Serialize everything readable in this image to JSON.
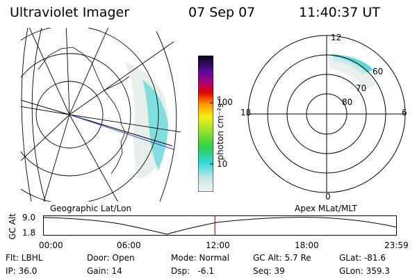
{
  "header": {
    "title": "Ultraviolet Imager",
    "date": "07 Sep 07",
    "time": "11:40:37 UT"
  },
  "colorbar": {
    "unit_label": "photon cm⁻²s⁻¹",
    "ticks": [
      "100",
      "10"
    ]
  },
  "polar_plot": {
    "mlt_labels": {
      "top": "12",
      "left": "18",
      "right": "6",
      "bottom": "0"
    },
    "lat_labels": [
      "60",
      "70",
      "80"
    ]
  },
  "map_labels": {
    "left": "Geographic Lat/Lon",
    "right": "Apex MLat/MLT"
  },
  "alt_plot": {
    "axis_label": "GC Alt",
    "y_ticks": [
      "9.0",
      "1.8"
    ],
    "x_ticks": [
      "00:00",
      "06:00",
      "12:00",
      "18:00",
      "23:59"
    ],
    "current_marker_hour": 11.68,
    "marker_color": "#e00000"
  },
  "status": {
    "row1": [
      {
        "label": "Flt: LBHL"
      },
      {
        "label": "Door: Open"
      },
      {
        "label": "Mode: Normal"
      },
      {
        "label": "GC Alt: 5.7 Re"
      },
      {
        "label": "GLat: -81.6"
      }
    ],
    "row2": [
      {
        "label": "IP: 36.0"
      },
      {
        "label": "Gain: 14"
      },
      {
        "label": "Dsp:   -6.1"
      },
      {
        "label": "Seq: 39"
      },
      {
        "label": "GLon: 359.3"
      }
    ]
  }
}
